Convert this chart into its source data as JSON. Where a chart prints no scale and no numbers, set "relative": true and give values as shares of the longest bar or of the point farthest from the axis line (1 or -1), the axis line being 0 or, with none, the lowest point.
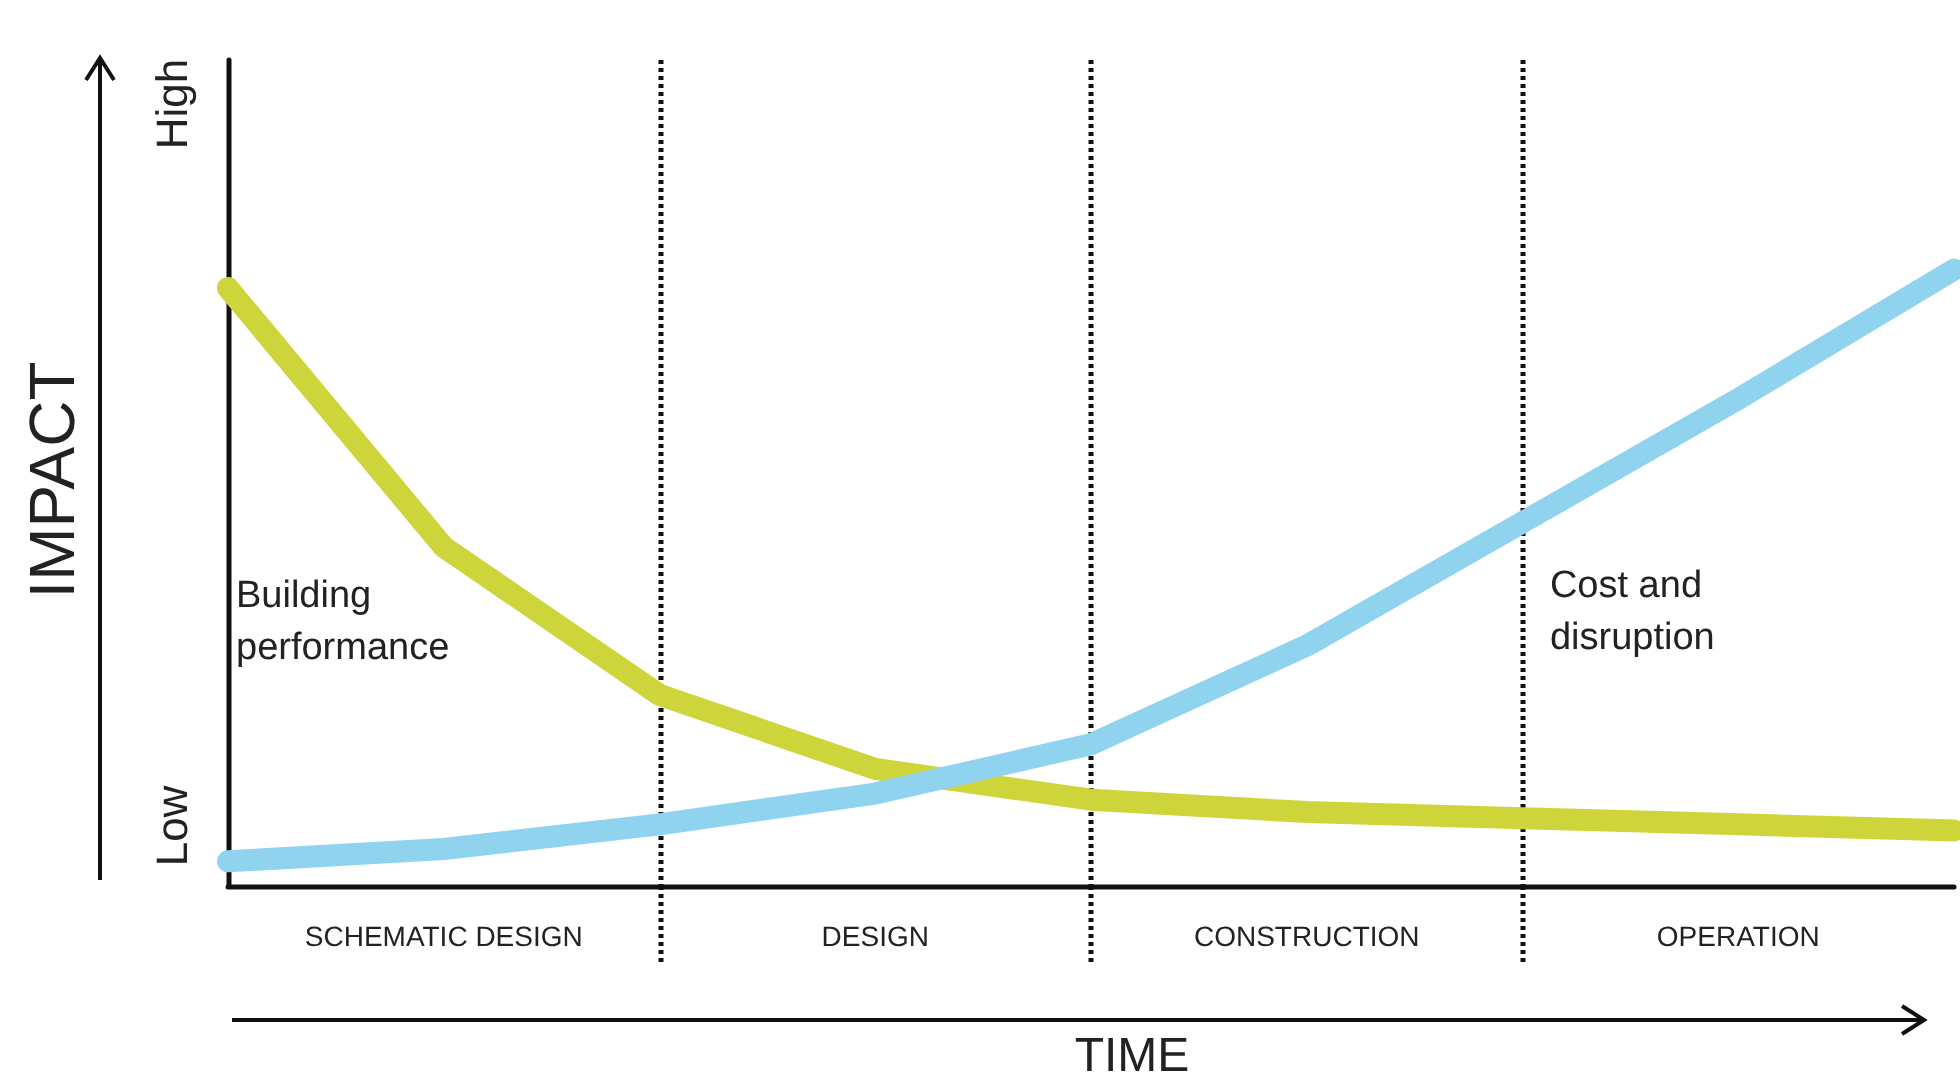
{
  "chart_data": {
    "type": "line",
    "relative": true,
    "xlabel": "TIME",
    "ylabel": "IMPACT",
    "annotations": [
      "Low",
      "High"
    ],
    "categories": [
      null,
      "SCHEMATIC DESIGN",
      null,
      "DESIGN",
      null,
      "CONSTRUCTION",
      null,
      "OPERATION",
      null
    ],
    "grid": "x",
    "legend": false,
    "line_style": "solid",
    "series": [
      {
        "name": "Building performance",
        "color": "#cdd53a",
        "values": [
          0.97,
          0.55,
          0.31,
          0.19,
          0.14,
          0.12,
          0.11,
          0.1,
          0.09
        ]
      },
      {
        "name": "Cost and disruption",
        "color": "#8fd3ef",
        "values": [
          0.04,
          0.06,
          0.1,
          0.15,
          0.23,
          0.39,
          0.59,
          0.79,
          1
        ]
      }
    ]
  }
}
